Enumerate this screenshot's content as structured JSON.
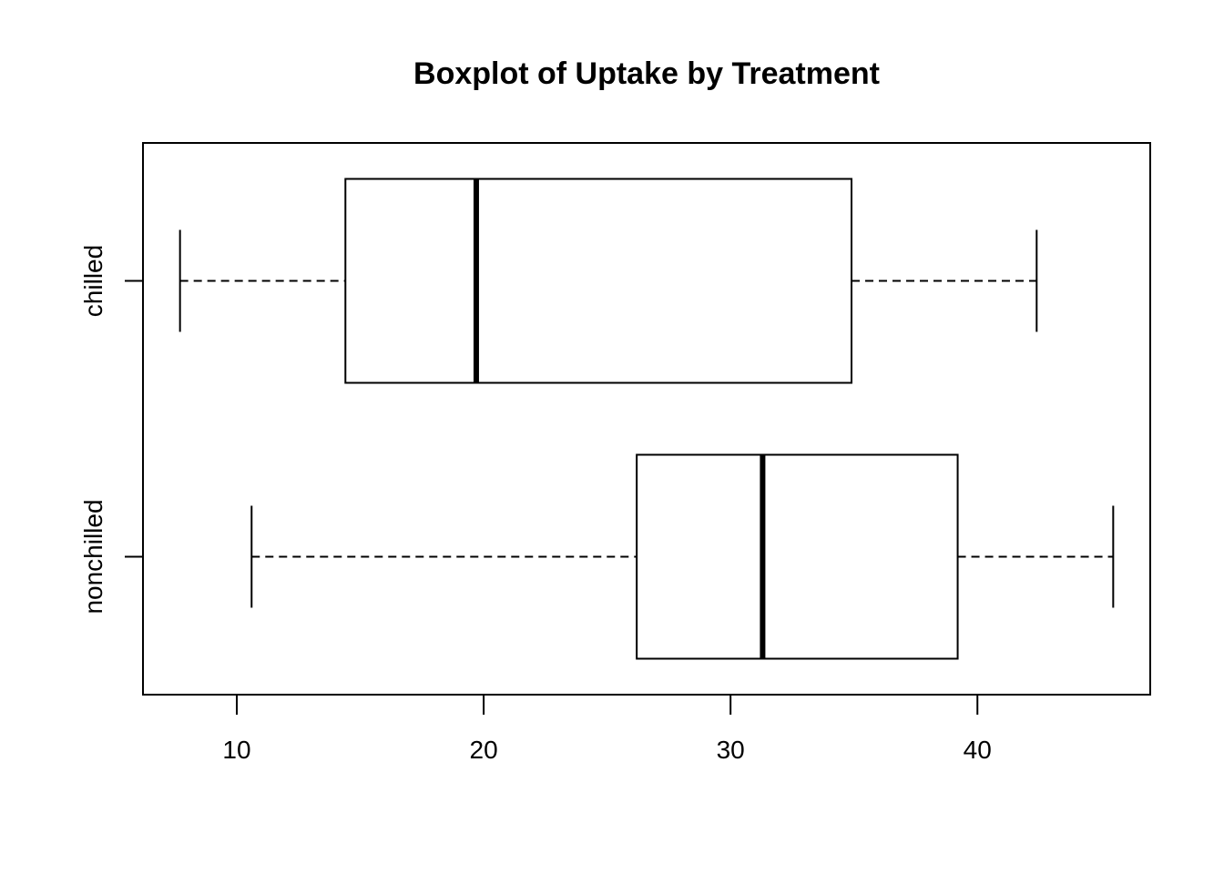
{
  "chart_data": {
    "type": "boxplot",
    "orientation": "horizontal",
    "title": "Boxplot of Uptake by Treatment",
    "xlabel": "",
    "ylabel": "",
    "xlim": [
      6.2,
      47.0
    ],
    "x_ticks": [
      10,
      20,
      30,
      40
    ],
    "x_tick_labels": [
      "10",
      "20",
      "30",
      "40"
    ],
    "categories": [
      "nonchilled",
      "chilled"
    ],
    "series": [
      {
        "category": "nonchilled",
        "whisker_low": 10.6,
        "q1": 26.2,
        "median": 31.3,
        "q3": 39.2,
        "whisker_high": 45.5
      },
      {
        "category": "chilled",
        "whisker_low": 7.7,
        "q1": 14.4,
        "median": 19.7,
        "q3": 34.9,
        "whisker_high": 42.4
      }
    ],
    "grid": false,
    "legend": "none",
    "colors": {
      "box_fill": "#ffffff",
      "stroke": "#000000"
    }
  }
}
